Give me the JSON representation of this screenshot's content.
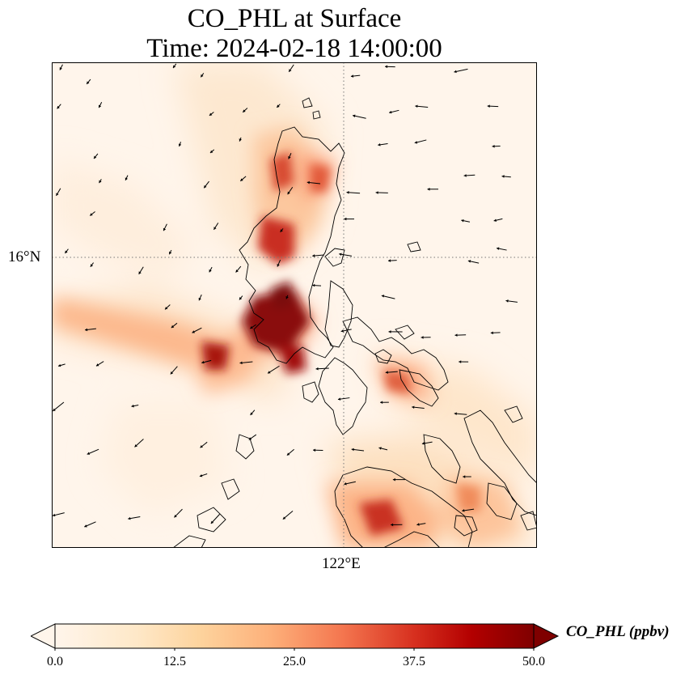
{
  "title": {
    "line1": "CO_PHL at Surface",
    "line2": "Time: 2024-02-18 14:00:00"
  },
  "map": {
    "lat_label": "16°N",
    "lon_label": "122°E",
    "gridline_style": "dotted",
    "coastline_color": "#000000"
  },
  "colorbar": {
    "label": "CO_PHL (ppbv)",
    "ticks": [
      "0.0",
      "12.5",
      "25.0",
      "37.5",
      "50.0"
    ],
    "range": [
      0,
      50
    ],
    "extend": "both",
    "colormap": [
      "#fff5eb",
      "#fdd9a8",
      "#fdae6b",
      "#f16913",
      "#d94801",
      "#a50f15",
      "#67000d"
    ]
  },
  "legend_placement": "bottom"
}
